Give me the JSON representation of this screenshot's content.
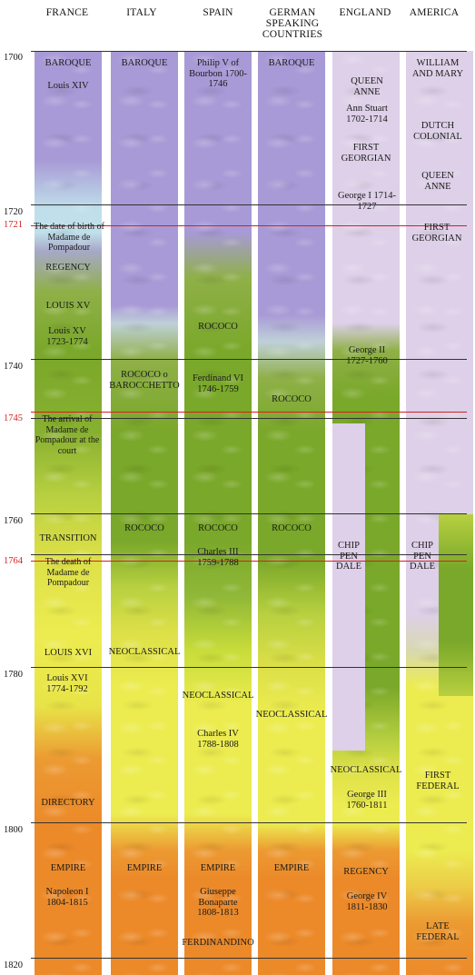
{
  "headers": [
    {
      "key": "france",
      "label": "FRANCE"
    },
    {
      "key": "italy",
      "label": "ITALY"
    },
    {
      "key": "spain",
      "label": "SPAIN"
    },
    {
      "key": "german",
      "label": "GERMAN\nSPEAKING\nCOUNTRIES"
    },
    {
      "key": "england",
      "label": "ENGLAND"
    },
    {
      "key": "america",
      "label": "AMERICA"
    }
  ],
  "years": {
    "y1700": "1700",
    "y1720": "1720",
    "y1721": "1721",
    "y1740": "1740",
    "y1745": "1745",
    "y1760": "1760",
    "y1764": "1764",
    "y1780": "1780",
    "y1800": "1800",
    "y1820": "1820"
  },
  "france": {
    "baroque": "BAROQUE",
    "louis14": "Louis XIV",
    "pompadour_birth": "The date of birth of Madame de Pompadour",
    "regency": "REGENCY",
    "louis15_style": "LOUIS XV",
    "louis15": "Louis XV 1723-1774",
    "pompadour_arrival": "The arrival of Madame de Pompadour at the court",
    "transition": "TRANSITION",
    "pompadour_death": "The death of Madame de Pompadour",
    "louis16_style": "LOUIS XVI",
    "louis16": "Louis XVI 1774-1792",
    "directory": "DIRECTORY",
    "empire": "EMPIRE",
    "napoleon": "Napoleon I 1804-1815"
  },
  "italy": {
    "baroque": "BAROQUE",
    "rococo_barocchetto": "ROCOCO o BAROCCHETTO",
    "rococo": "ROCOCO",
    "neoclassical": "NEOCLASSICAL",
    "empire": "EMPIRE"
  },
  "spain": {
    "philip": "Philip V of Bourbon 1700-1746",
    "rococo1": "ROCOCO",
    "ferdinand": "Ferdinand VI 1746-1759",
    "rococo2": "ROCOCO",
    "charles3": "Charles III 1759-1788",
    "neoclassical": "NEOCLASSICAL",
    "charles4": "Charles IV 1788-1808",
    "empire": "EMPIRE",
    "giuseppe": "Giuseppe Bonaparte 1808-1813",
    "ferdinandino": "FERDINANDINO"
  },
  "german": {
    "baroque": "BAROQUE",
    "rococo1": "ROCOCO",
    "rococo2": "ROCOCO",
    "neoclassical": "NEOCLASSICAL",
    "empire": "EMPIRE"
  },
  "england": {
    "queen_anne": "QUEEN ANNE",
    "anne_stuart": "Ann Stuart 1702-1714",
    "first_georgian": "FIRST GEORGIAN",
    "george1": "George I 1714-1727",
    "george2": "George II 1727-1760",
    "chippendale": "CHIP PEN DALE",
    "neoclassical": "NEOCLASSICAL",
    "george3": "George III 1760-1811",
    "regency": "REGENCY",
    "george4": "George IV 1811-1830"
  },
  "america": {
    "william_mary": "WILLIAM AND MARY",
    "dutch_colonial": "DUTCH COLONIAL",
    "queen_anne": "QUEEN ANNE",
    "first_georgian": "FIRST GEORGIAN",
    "chippendale": "CHIP PEN DALE",
    "first_federal": "FIRST FEDERAL",
    "late_federal": "LATE FEDERAL"
  },
  "colors": {
    "baroque": "#a89ad6",
    "lavender_light": "#ddd0e8",
    "light_blue": "#bfe0ea",
    "green": "#7aa82a",
    "yellow_green": "#c8dc3a",
    "yellow": "#ecec50",
    "orange": "#ec8a2a",
    "year_red": "#d62020"
  }
}
